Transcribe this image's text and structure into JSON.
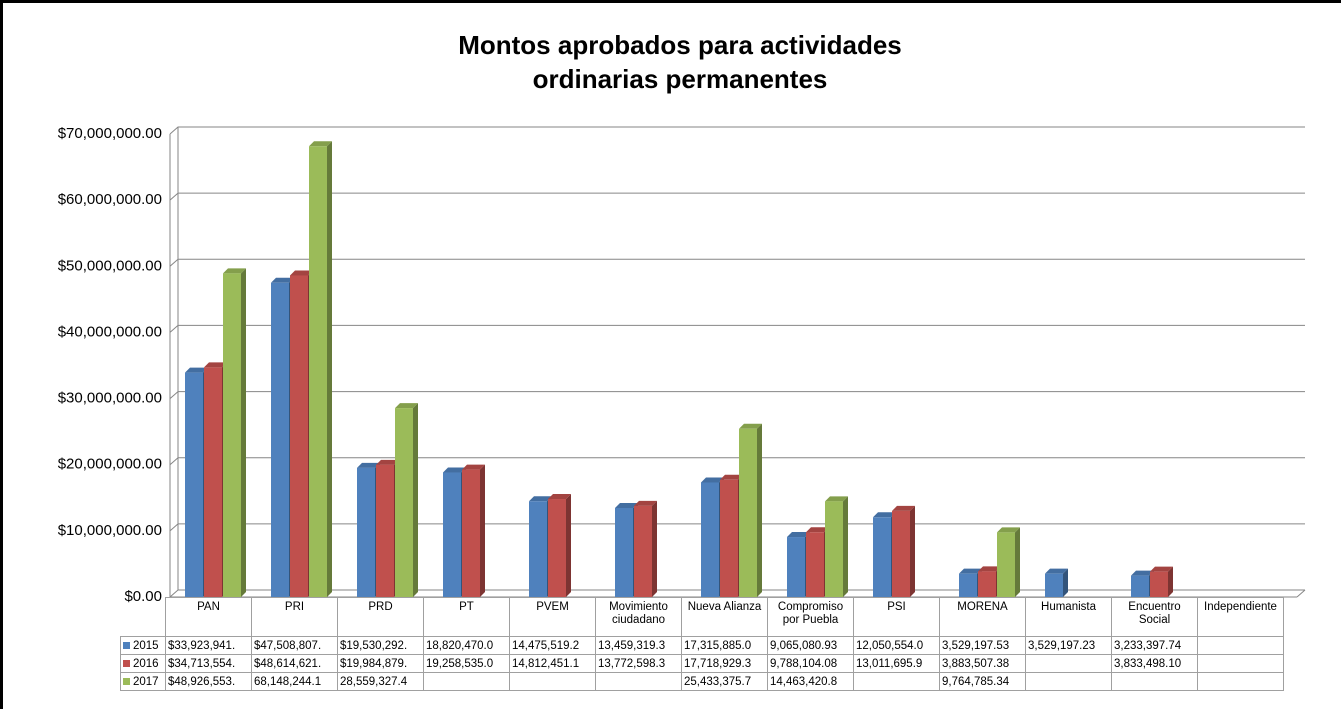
{
  "chart_data": {
    "type": "bar3d",
    "title": "Montos aprobados para actividades ordinarias permanentes",
    "categories": [
      "PAN",
      "PRI",
      "PRD",
      "PT",
      "PVEM",
      "Movimiento ciudadano",
      "Nueva Alianza",
      "Compromiso por Puebla",
      "PSI",
      "MORENA",
      "Humanista",
      "Encuentro Social",
      "Independiente"
    ],
    "series": [
      {
        "name": "2015",
        "color": "#4f81bd",
        "values": [
          33923941,
          47508807,
          19530292,
          18820470.0,
          14475519.2,
          13459319.3,
          17315885.0,
          9065080.93,
          12050554.0,
          3529197.53,
          3529197.23,
          3233397.74,
          null
        ],
        "value_labels": [
          "$33,923,941.",
          "$47,508,807.",
          "$19,530,292.",
          "18,820,470.0",
          "14,475,519.2",
          "13,459,319.3",
          "17,315,885.0",
          "9,065,080.93",
          "12,050,554.0",
          "3,529,197.53",
          "3,529,197.23",
          "3,233,397.74",
          null
        ]
      },
      {
        "name": "2016",
        "color": "#c0504d",
        "values": [
          34713554,
          48614621,
          19984879,
          19258535.0,
          14812451.1,
          13772598.3,
          17718929.3,
          9788104.08,
          13011695.9,
          3883507.38,
          null,
          3833498.1,
          null
        ],
        "value_labels": [
          "$34,713,554.",
          "$48,614,621.",
          "$19,984,879.",
          "19,258,535.0",
          "14,812,451.1",
          "13,772,598.3",
          "17,718,929.3",
          "9,788,104.08",
          "13,011,695.9",
          "3,883,507.38",
          null,
          "3,833,498.10",
          null
        ]
      },
      {
        "name": "2017",
        "color": "#9bbb59",
        "values": [
          48926553,
          68148244.1,
          28559327.4,
          null,
          null,
          null,
          25433375.7,
          14463420.8,
          null,
          9764785.34,
          null,
          null,
          null
        ],
        "value_labels": [
          "$48,926,553.",
          "68,148,244.1",
          "28,559,327.4",
          null,
          null,
          null,
          "25,433,375.7",
          "14,463,420.8",
          null,
          "9,764,785.34",
          null,
          null,
          null
        ]
      }
    ],
    "ylim": [
      0,
      70000000
    ],
    "yticks": [
      {
        "value": 0,
        "label": "$0.00"
      },
      {
        "value": 10000000,
        "label": "$10,000,000.00"
      },
      {
        "value": 20000000,
        "label": "$20,000,000.00"
      },
      {
        "value": 30000000,
        "label": "$30,000,000.00"
      },
      {
        "value": 40000000,
        "label": "$40,000,000.00"
      },
      {
        "value": 50000000,
        "label": "$50,000,000.00"
      },
      {
        "value": 60000000,
        "label": "$60,000,000.00"
      },
      {
        "value": 70000000,
        "label": "$70,000,000.00"
      }
    ],
    "grid": true
  }
}
